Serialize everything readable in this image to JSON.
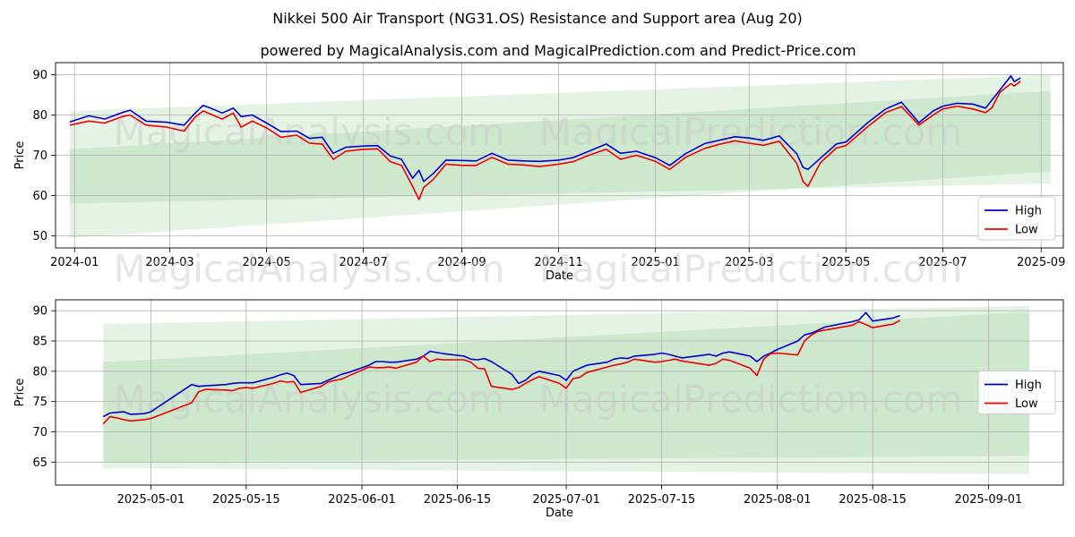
{
  "title": "Nikkei 500 Air Transport (NG31.OS) Resistance and Support area (Aug 20)",
  "subtitle": "powered by MagicalAnalysis.com and MagicalPrediction.com and Predict-Price.com",
  "watermarks": [
    "MagicalAnalysis.com",
    "MagicalPrediction.com"
  ],
  "colors": {
    "high": "#0000cc",
    "low": "#ee0000",
    "band": "#2ca02c"
  },
  "chart_data": [
    {
      "type": "line",
      "xlabel": "Date",
      "ylabel": "Price",
      "ylim": [
        47,
        93
      ],
      "xlim": [
        "2023-12-20",
        "2025-09-15"
      ],
      "yticks": [
        50,
        60,
        70,
        80,
        90
      ],
      "xticks": [
        "2024-01",
        "2024-03",
        "2024-05",
        "2024-07",
        "2024-09",
        "2024-11",
        "2025-01",
        "2025-03",
        "2025-05",
        "2025-07",
        "2025-09"
      ],
      "legend": {
        "position": "lower-right",
        "entries": [
          "High",
          "Low"
        ]
      },
      "bands": [
        {
          "x": [
            "2023-12-29",
            "2025-09-07"
          ],
          "upper": [
            81,
            90
          ],
          "lower": [
            49.5,
            66
          ]
        },
        {
          "x": [
            "2023-12-29",
            "2025-09-07"
          ],
          "upper": [
            71.5,
            86
          ],
          "lower": [
            58,
            63
          ]
        }
      ],
      "series": [
        {
          "name": "High",
          "x": [
            "2023-12-29",
            "2024-01-10",
            "2024-01-20",
            "2024-01-31",
            "2024-02-05",
            "2024-02-15",
            "2024-02-28",
            "2024-03-10",
            "2024-03-17",
            "2024-03-22",
            "2024-03-28",
            "2024-04-03",
            "2024-04-10",
            "2024-04-15",
            "2024-04-22",
            "2024-05-01",
            "2024-05-10",
            "2024-05-20",
            "2024-05-28",
            "2024-06-05",
            "2024-06-12",
            "2024-06-20",
            "2024-07-01",
            "2024-07-10",
            "2024-07-18",
            "2024-07-25",
            "2024-08-01",
            "2024-08-05",
            "2024-08-08",
            "2024-08-14",
            "2024-08-22",
            "2024-09-01",
            "2024-09-10",
            "2024-09-20",
            "2024-09-30",
            "2024-10-10",
            "2024-10-20",
            "2024-11-01",
            "2024-11-10",
            "2024-11-20",
            "2024-12-01",
            "2024-12-10",
            "2024-12-20",
            "2025-01-01",
            "2025-01-10",
            "2025-01-20",
            "2025-02-01",
            "2025-02-10",
            "2025-02-20",
            "2025-03-01",
            "2025-03-10",
            "2025-03-20",
            "2025-03-31",
            "2025-04-04",
            "2025-04-07",
            "2025-04-15",
            "2025-04-25",
            "2025-05-01",
            "2025-05-15",
            "2025-05-26",
            "2025-06-05",
            "2025-06-16",
            "2025-06-25",
            "2025-07-01",
            "2025-07-10",
            "2025-07-20",
            "2025-07-28",
            "2025-08-01",
            "2025-08-06",
            "2025-08-13",
            "2025-08-15",
            "2025-08-19"
          ],
          "values": [
            78.3,
            79.8,
            79.0,
            80.6,
            81.2,
            78.5,
            78.2,
            77.5,
            80.5,
            82.4,
            81.5,
            80.5,
            81.7,
            79.6,
            80.0,
            78.0,
            75.9,
            76.0,
            74.2,
            74.5,
            70.5,
            72.0,
            72.3,
            72.4,
            69.8,
            69.0,
            64.3,
            66.3,
            63.5,
            65.5,
            68.8,
            68.7,
            68.6,
            70.5,
            68.8,
            68.6,
            68.5,
            68.8,
            69.4,
            71.0,
            72.8,
            70.5,
            71.0,
            69.4,
            67.5,
            70.4,
            72.9,
            73.7,
            74.6,
            74.3,
            73.7,
            74.8,
            70.4,
            67.0,
            66.5,
            69.3,
            72.8,
            73.3,
            78.2,
            81.5,
            83.2,
            78.1,
            81.0,
            82.2,
            82.9,
            82.7,
            81.7,
            83.7,
            86.2,
            89.7,
            88.3,
            89.2
          ]
        },
        {
          "name": "Low",
          "x": [
            "2023-12-29",
            "2024-01-10",
            "2024-01-20",
            "2024-01-31",
            "2024-02-05",
            "2024-02-15",
            "2024-02-28",
            "2024-03-10",
            "2024-03-17",
            "2024-03-22",
            "2024-03-28",
            "2024-04-03",
            "2024-04-10",
            "2024-04-15",
            "2024-04-22",
            "2024-05-01",
            "2024-05-10",
            "2024-05-20",
            "2024-05-28",
            "2024-06-05",
            "2024-06-12",
            "2024-06-20",
            "2024-07-01",
            "2024-07-10",
            "2024-07-18",
            "2024-07-25",
            "2024-08-01",
            "2024-08-05",
            "2024-08-08",
            "2024-08-14",
            "2024-08-22",
            "2024-09-01",
            "2024-09-10",
            "2024-09-20",
            "2024-09-30",
            "2024-10-10",
            "2024-10-20",
            "2024-11-01",
            "2024-11-10",
            "2024-11-20",
            "2024-12-01",
            "2024-12-10",
            "2024-12-20",
            "2025-01-01",
            "2025-01-10",
            "2025-01-20",
            "2025-02-01",
            "2025-02-10",
            "2025-02-20",
            "2025-03-01",
            "2025-03-10",
            "2025-03-20",
            "2025-03-31",
            "2025-04-04",
            "2025-04-07",
            "2025-04-15",
            "2025-04-25",
            "2025-05-01",
            "2025-05-15",
            "2025-05-26",
            "2025-06-05",
            "2025-06-16",
            "2025-06-25",
            "2025-07-01",
            "2025-07-10",
            "2025-07-20",
            "2025-07-28",
            "2025-08-01",
            "2025-08-06",
            "2025-08-13",
            "2025-08-15",
            "2025-08-19"
          ],
          "values": [
            77.5,
            78.5,
            78.0,
            79.6,
            80.0,
            77.5,
            77.0,
            76.0,
            79.5,
            81.0,
            80.0,
            79.0,
            80.5,
            77.0,
            78.5,
            76.8,
            74.5,
            75.0,
            73.0,
            72.8,
            69.0,
            71.0,
            71.5,
            71.6,
            68.4,
            67.5,
            62.3,
            59.0,
            62.0,
            64.0,
            67.8,
            67.5,
            67.5,
            69.5,
            67.8,
            67.6,
            67.2,
            67.8,
            68.4,
            70.0,
            71.5,
            69.0,
            70.0,
            68.5,
            66.5,
            69.5,
            71.7,
            72.7,
            73.6,
            73.0,
            72.5,
            73.5,
            68.0,
            63.5,
            62.3,
            68.2,
            71.8,
            72.4,
            77.2,
            80.6,
            82.1,
            77.5,
            80.0,
            81.5,
            82.2,
            81.5,
            80.6,
            81.8,
            85.6,
            87.8,
            87.2,
            88.4
          ]
        }
      ]
    },
    {
      "type": "line",
      "xlabel": "Date",
      "ylabel": "Price",
      "ylim": [
        61.2,
        91.8
      ],
      "xlim": [
        "2025-04-17",
        "2025-09-12"
      ],
      "yticks": [
        65,
        70,
        75,
        80,
        85,
        90
      ],
      "xticks": [
        "2025-05-01",
        "2025-05-15",
        "2025-06-01",
        "2025-06-15",
        "2025-07-01",
        "2025-07-15",
        "2025-08-01",
        "2025-08-15",
        "2025-09-01"
      ],
      "legend": {
        "position": "center-right",
        "entries": [
          "High",
          "Low"
        ]
      },
      "bands": [
        {
          "x": [
            "2025-04-24",
            "2025-09-07"
          ],
          "upper": [
            87.8,
            90.8
          ],
          "lower": [
            64.0,
            63.0
          ]
        },
        {
          "x": [
            "2025-04-24",
            "2025-09-07"
          ],
          "upper": [
            81.5,
            89.8
          ],
          "lower": [
            65.0,
            66.0
          ]
        }
      ],
      "series": [
        {
          "name": "High",
          "x": [
            "2025-04-24",
            "2025-04-25",
            "2025-04-26",
            "2025-04-27",
            "2025-04-28",
            "2025-04-30",
            "2025-05-01",
            "2025-05-07",
            "2025-05-08",
            "2025-05-09",
            "2025-05-12",
            "2025-05-13",
            "2025-05-14",
            "2025-05-15",
            "2025-05-16",
            "2025-05-19",
            "2025-05-20",
            "2025-05-21",
            "2025-05-22",
            "2025-05-23",
            "2025-05-26",
            "2025-05-27",
            "2025-05-28",
            "2025-05-29",
            "2025-05-30",
            "2025-06-02",
            "2025-06-03",
            "2025-06-04",
            "2025-06-05",
            "2025-06-06",
            "2025-06-09",
            "2025-06-10",
            "2025-06-11",
            "2025-06-12",
            "2025-06-13",
            "2025-06-16",
            "2025-06-17",
            "2025-06-18",
            "2025-06-19",
            "2025-06-20",
            "2025-06-23",
            "2025-06-24",
            "2025-06-25",
            "2025-06-26",
            "2025-06-27",
            "2025-06-30",
            "2025-07-01",
            "2025-07-02",
            "2025-07-03",
            "2025-07-04",
            "2025-07-07",
            "2025-07-08",
            "2025-07-09",
            "2025-07-10",
            "2025-07-11",
            "2025-07-14",
            "2025-07-15",
            "2025-07-16",
            "2025-07-17",
            "2025-07-18",
            "2025-07-22",
            "2025-07-23",
            "2025-07-24",
            "2025-07-25",
            "2025-07-28",
            "2025-07-29",
            "2025-07-30",
            "2025-07-31",
            "2025-08-01",
            "2025-08-04",
            "2025-08-05",
            "2025-08-06",
            "2025-08-07",
            "2025-08-08",
            "2025-08-12",
            "2025-08-13",
            "2025-08-14",
            "2025-08-15",
            "2025-08-18",
            "2025-08-19"
          ],
          "values": [
            72.5,
            73.1,
            73.2,
            73.3,
            72.9,
            73.0,
            73.3,
            77.8,
            77.5,
            77.6,
            77.8,
            78.0,
            78.1,
            78.1,
            78.1,
            79.0,
            79.4,
            79.7,
            79.3,
            77.8,
            78.0,
            78.5,
            79.0,
            79.5,
            79.8,
            81.0,
            81.6,
            81.6,
            81.5,
            81.5,
            82.0,
            82.5,
            83.3,
            83.1,
            82.9,
            82.5,
            82.0,
            81.9,
            82.1,
            81.6,
            79.5,
            78.0,
            78.5,
            79.5,
            80.0,
            79.3,
            78.5,
            80.0,
            80.5,
            81.0,
            81.5,
            82.0,
            82.2,
            82.1,
            82.5,
            82.8,
            83.0,
            82.8,
            82.5,
            82.2,
            82.8,
            82.5,
            83.0,
            83.2,
            82.5,
            81.6,
            82.5,
            83.0,
            83.6,
            85.0,
            86.0,
            86.3,
            86.8,
            87.3,
            88.2,
            88.5,
            89.7,
            88.3,
            88.8,
            89.2
          ]
        },
        {
          "name": "Low",
          "x": [
            "2025-04-24",
            "2025-04-25",
            "2025-04-26",
            "2025-04-27",
            "2025-04-28",
            "2025-04-30",
            "2025-05-01",
            "2025-05-07",
            "2025-05-08",
            "2025-05-09",
            "2025-05-12",
            "2025-05-13",
            "2025-05-14",
            "2025-05-15",
            "2025-05-16",
            "2025-05-19",
            "2025-05-20",
            "2025-05-21",
            "2025-05-22",
            "2025-05-23",
            "2025-05-26",
            "2025-05-27",
            "2025-05-28",
            "2025-05-29",
            "2025-05-30",
            "2025-06-02",
            "2025-06-03",
            "2025-06-04",
            "2025-06-05",
            "2025-06-06",
            "2025-06-09",
            "2025-06-10",
            "2025-06-11",
            "2025-06-12",
            "2025-06-13",
            "2025-06-16",
            "2025-06-17",
            "2025-06-18",
            "2025-06-19",
            "2025-06-20",
            "2025-06-23",
            "2025-06-24",
            "2025-06-25",
            "2025-06-26",
            "2025-06-27",
            "2025-06-30",
            "2025-07-01",
            "2025-07-02",
            "2025-07-03",
            "2025-07-04",
            "2025-07-07",
            "2025-07-08",
            "2025-07-09",
            "2025-07-10",
            "2025-07-11",
            "2025-07-14",
            "2025-07-15",
            "2025-07-16",
            "2025-07-17",
            "2025-07-18",
            "2025-07-22",
            "2025-07-23",
            "2025-07-24",
            "2025-07-25",
            "2025-07-28",
            "2025-07-29",
            "2025-07-30",
            "2025-07-31",
            "2025-08-01",
            "2025-08-04",
            "2025-08-05",
            "2025-08-06",
            "2025-08-07",
            "2025-08-08",
            "2025-08-12",
            "2025-08-13",
            "2025-08-14",
            "2025-08-15",
            "2025-08-18",
            "2025-08-19"
          ],
          "values": [
            71.3,
            72.5,
            72.3,
            72.0,
            71.8,
            72.0,
            72.2,
            74.8,
            76.6,
            77.0,
            76.9,
            76.8,
            77.2,
            77.3,
            77.2,
            78.0,
            78.4,
            78.2,
            78.3,
            76.5,
            77.5,
            78.2,
            78.5,
            78.7,
            79.2,
            80.7,
            80.6,
            80.6,
            80.7,
            80.5,
            81.5,
            82.5,
            81.6,
            82.0,
            81.9,
            81.9,
            81.5,
            80.5,
            80.4,
            77.5,
            77.0,
            77.3,
            78.0,
            78.6,
            79.1,
            78.0,
            77.2,
            78.8,
            79.0,
            79.8,
            80.7,
            81.0,
            81.2,
            81.5,
            82.0,
            81.5,
            81.6,
            81.8,
            82.0,
            81.7,
            81.0,
            81.3,
            82.0,
            81.8,
            80.5,
            79.3,
            82.0,
            82.9,
            83.0,
            82.7,
            85.0,
            86.0,
            86.6,
            86.8,
            87.6,
            88.2,
            87.7,
            87.2,
            87.8,
            88.4
          ]
        }
      ]
    }
  ]
}
